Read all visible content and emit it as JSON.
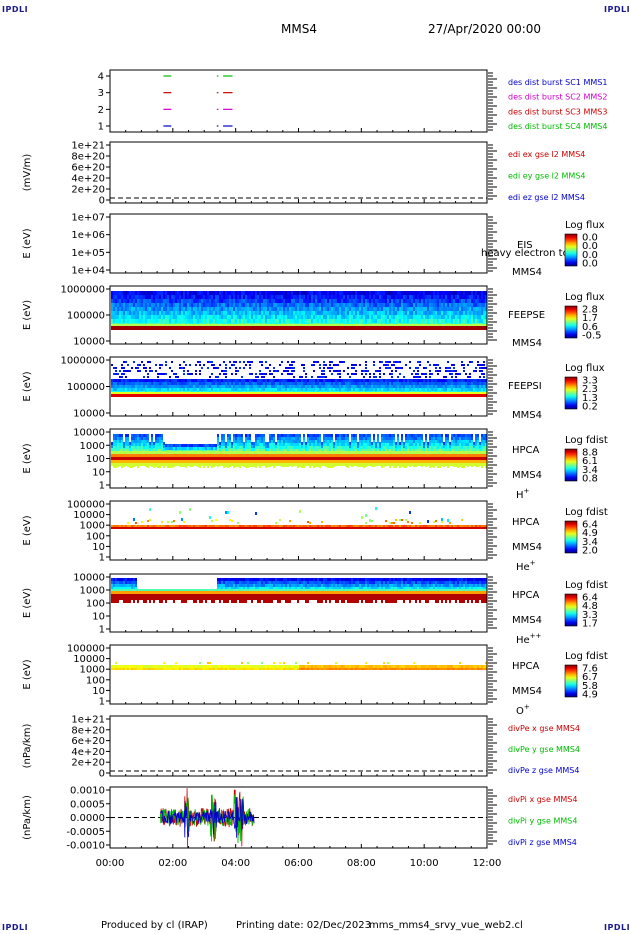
{
  "corners": {
    "tl": "IPDLI",
    "tr": "IPDLI",
    "bl": "IPDLI",
    "br": "IPDLI"
  },
  "header": {
    "spacecraft": "MMS4",
    "date": "27/Apr/2020 00:00"
  },
  "footer": {
    "produced": "Produced by cl (IRAP)",
    "printing": "Printing date: 02/Dec/2023",
    "file": "mms_mms4_srvy_vue_web2.cl"
  },
  "chart_data": [
    {
      "id": "burst",
      "type": "line",
      "yticks": [
        "4",
        "3",
        "2",
        "1"
      ],
      "legend": [
        {
          "text": "des dist burst SC1 MMS1",
          "color": "#0000cc"
        },
        {
          "text": "des dist burst SC2 MMS2",
          "color": "#cc00cc"
        },
        {
          "text": "des dist burst SC3 MMS3",
          "color": "#cc0000"
        },
        {
          "text": "des dist burst SC4 MMS4",
          "color": "#00bb00"
        }
      ],
      "series": [
        {
          "level": 4,
          "color": "#00bb00",
          "intervals": [
            [
              1.7,
              1.95
            ],
            [
              3.4,
              3.45
            ],
            [
              3.6,
              3.9
            ]
          ]
        },
        {
          "level": 3,
          "color": "#cc0000",
          "intervals": [
            [
              1.7,
              1.95
            ],
            [
              3.4,
              3.45
            ],
            [
              3.6,
              3.9
            ]
          ]
        },
        {
          "level": 2,
          "color": "#cc00cc",
          "intervals": [
            [
              1.7,
              1.95
            ],
            [
              3.4,
              3.45
            ],
            [
              3.6,
              3.9
            ]
          ]
        },
        {
          "level": 1,
          "color": "#0000cc",
          "intervals": [
            [
              1.7,
              1.95
            ],
            [
              3.4,
              3.45
            ],
            [
              3.6,
              3.9
            ]
          ]
        }
      ]
    },
    {
      "id": "edi",
      "type": "line",
      "ylabel": "(mV/m)",
      "yticks": [
        "1e+21",
        "8e+20",
        "6e+20",
        "4e+20",
        "2e+20",
        "0"
      ],
      "legend": [
        {
          "text": "edi ex gse l2 MMS4",
          "color": "#cc0000"
        },
        {
          "text": "edi ey gse l2 MMS4",
          "color": "#00bb00"
        },
        {
          "text": "edi ez gse l2 MMS4",
          "color": "#0000cc"
        }
      ]
    },
    {
      "id": "eis",
      "type": "heatmap",
      "ylabel": "E (eV)",
      "yticks": [
        "1e+07",
        "1e+06",
        "1e+05",
        "1e+04"
      ],
      "labels": [
        "EIS",
        "MMS4"
      ],
      "overlay": "heavy electron tof",
      "colorbar": {
        "title": "Log flux",
        "ticks": [
          "0.0",
          "0.0",
          "0.0",
          "0.0"
        ]
      }
    },
    {
      "id": "feepse",
      "type": "heatmap",
      "ylabel": "E (eV)",
      "yticks": [
        "1000000",
        "100000",
        "10000"
      ],
      "labels": [
        "FEEPSE",
        "MMS4"
      ],
      "colorbar": {
        "title": "Log flux",
        "ticks": [
          "2.8",
          "1.7",
          "0.6",
          "-0.5"
        ]
      }
    },
    {
      "id": "feepsi",
      "type": "heatmap",
      "ylabel": "E (eV)",
      "yticks": [
        "1000000",
        "100000",
        "10000"
      ],
      "labels": [
        "FEEPSI",
        "MMS4"
      ],
      "colorbar": {
        "title": "Log flux",
        "ticks": [
          "3.3",
          "2.3",
          "1.3",
          "0.2"
        ]
      }
    },
    {
      "id": "hpca_h",
      "type": "heatmap",
      "ylabel": "E (eV)",
      "yticks": [
        "10000",
        "1000",
        "100",
        "10",
        "1"
      ],
      "labels": [
        "HPCA",
        "MMS4"
      ],
      "ion": "H",
      "charge": "+",
      "colorbar": {
        "title": "Log fdist",
        "ticks": [
          "8.8",
          "6.1",
          "3.4",
          "0.8"
        ]
      }
    },
    {
      "id": "hpca_he",
      "type": "heatmap",
      "ylabel": "E (eV)",
      "yticks": [
        "100000",
        "10000",
        "1000",
        "100",
        "10",
        "1"
      ],
      "labels": [
        "HPCA",
        "MMS4"
      ],
      "ion": "He",
      "charge": "+",
      "colorbar": {
        "title": "Log fdist",
        "ticks": [
          "6.4",
          "4.9",
          "3.4",
          "2.0"
        ]
      }
    },
    {
      "id": "hpca_he2",
      "type": "heatmap",
      "ylabel": "E (eV)",
      "yticks": [
        "10000",
        "1000",
        "100",
        "10",
        "1"
      ],
      "labels": [
        "HPCA",
        "MMS4"
      ],
      "ion": "He",
      "charge": "++",
      "colorbar": {
        "title": "Log fdist",
        "ticks": [
          "6.4",
          "4.8",
          "3.3",
          "1.7"
        ]
      }
    },
    {
      "id": "hpca_o",
      "type": "heatmap",
      "ylabel": "E (eV)",
      "yticks": [
        "100000",
        "10000",
        "1000",
        "100",
        "10",
        "1"
      ],
      "labels": [
        "HPCA",
        "MMS4"
      ],
      "ion": "O",
      "charge": "+",
      "colorbar": {
        "title": "Log fdist",
        "ticks": [
          "7.6",
          "6.7",
          "5.8",
          "4.9"
        ]
      }
    },
    {
      "id": "divpe",
      "type": "line",
      "ylabel": "(nPa/km)",
      "yticks": [
        "1e+21",
        "8e+20",
        "6e+20",
        "4e+20",
        "2e+20",
        "0"
      ],
      "legend": [
        {
          "text": "divPe x gse MMS4",
          "color": "#cc0000"
        },
        {
          "text": "divPe y gse MMS4",
          "color": "#00bb00"
        },
        {
          "text": "divPe z gse MMS4",
          "color": "#0000cc"
        }
      ]
    },
    {
      "id": "divpi",
      "type": "line",
      "ylabel": "(nPa/km)",
      "yticks": [
        "0.0010",
        "0.0005",
        "0.0000",
        "-0.0005",
        "-0.0010"
      ],
      "ylim": [
        -0.00125,
        0.00125
      ],
      "x_range_hours": [
        1.6,
        4.6
      ],
      "legend": [
        {
          "text": "divPi x gse MMS4",
          "color": "#cc0000"
        },
        {
          "text": "divPi y gse MMS4",
          "color": "#00bb00"
        },
        {
          "text": "divPi z gse MMS4",
          "color": "#0000cc"
        }
      ]
    }
  ],
  "xaxis": {
    "ticks": [
      "00:00",
      "02:00",
      "04:00",
      "06:00",
      "08:00",
      "10:00",
      "12:00"
    ],
    "range_hours": [
      0,
      12
    ]
  }
}
